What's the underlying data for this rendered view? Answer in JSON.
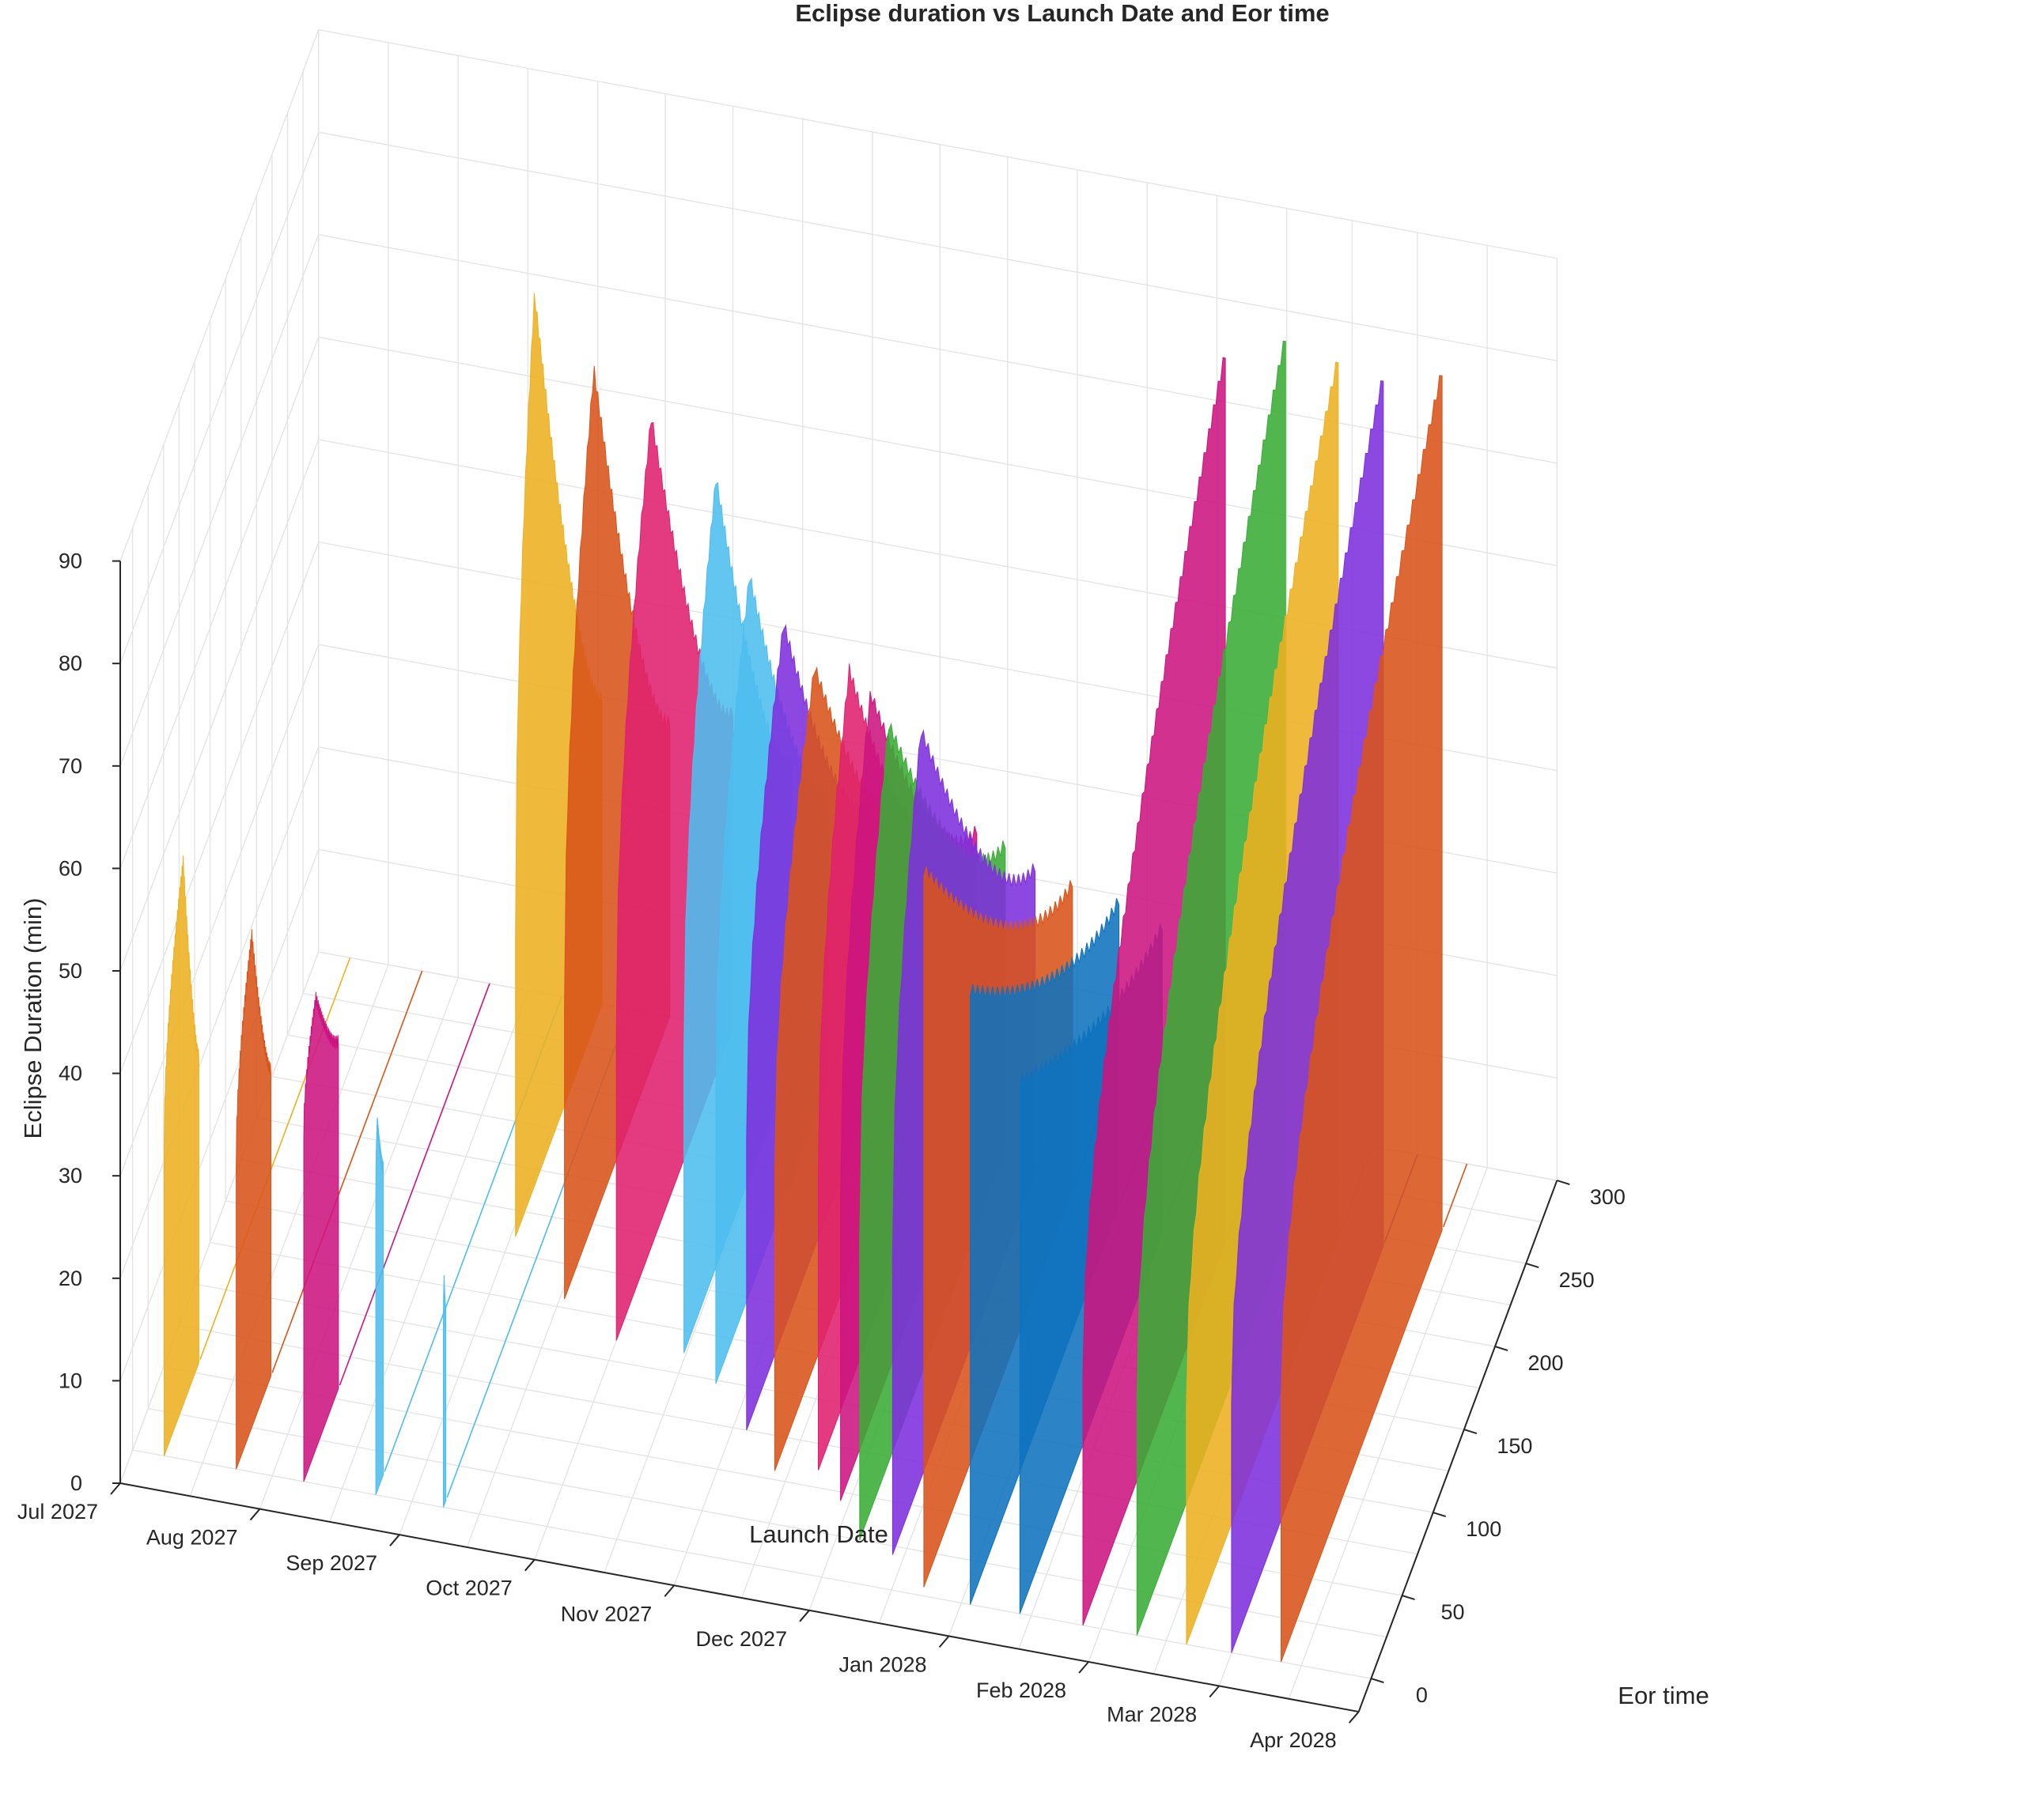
{
  "chart_data": {
    "type": "3d-ribbon",
    "title": "Eclipse duration vs Launch Date and Eor time",
    "xlabel": "Launch Date",
    "ylabel": "Eor time",
    "zlabel": "Eclipse Duration (min)",
    "x_ticks": [
      "Jul 2027",
      "Aug 2027",
      "Sep 2027",
      "Oct 2027",
      "Nov 2027",
      "Dec 2027",
      "Jan 2028",
      "Feb 2028",
      "Mar 2028",
      "Apr 2028"
    ],
    "y_ticks": [
      0,
      50,
      100,
      150,
      200,
      250,
      300
    ],
    "z_ticks": [
      0,
      10,
      20,
      30,
      40,
      50,
      60,
      70,
      80,
      90
    ],
    "xlim": [
      "Jul 2027",
      "Apr 2028"
    ],
    "ylim": [
      -20,
      300
    ],
    "zlim": [
      0,
      90
    ],
    "grid": true,
    "series": [
      {
        "launch": "2027-07-08",
        "color": "#edb120",
        "eor": [
          0,
          56
        ],
        "peak": 53,
        "peak_at": 0.55,
        "base": 30
      },
      {
        "launch": "2027-07-24",
        "color": "#d95319",
        "eor": [
          0,
          56
        ],
        "peak": 48,
        "peak_at": 0.45,
        "base": 30
      },
      {
        "launch": "2027-08-08",
        "color": "#cc1480",
        "eor": [
          0,
          56
        ],
        "peak": 44,
        "peak_at": 0.35,
        "base": 34
      },
      {
        "launch": "2027-08-24",
        "color": "#4dbeee",
        "eor": [
          0,
          12
        ],
        "peak": 36,
        "peak_at": 0.2,
        "base": 30
      },
      {
        "launch": "2027-09-08",
        "color": "#4dbeee",
        "eor": [
          0,
          4
        ],
        "peak": 22,
        "peak_at": 0.3,
        "base": 18
      },
      {
        "launch": "2027-09-02",
        "color": "#edb120",
        "eor": [
          160,
          300
        ],
        "peak": 87,
        "peak_at": 0.22,
        "base": 30
      },
      {
        "launch": "2027-09-17",
        "color": "#d95319",
        "eor": [
          130,
          300
        ],
        "peak": 83,
        "peak_at": 0.28,
        "base": 29
      },
      {
        "launch": "2027-10-01",
        "color": "#e0206e",
        "eor": [
          112,
          300
        ],
        "peak": 81,
        "peak_at": 0.3,
        "base": 31
      },
      {
        "launch": "2027-10-16",
        "color": "#4dbeee",
        "eor": [
          112,
          285
        ],
        "peak": 77,
        "peak_at": 0.3,
        "base": 30
      },
      {
        "launch": "2027-10-25",
        "color": "#4dbeee",
        "eor": [
          98,
          280
        ],
        "peak": 70,
        "peak_at": 0.3,
        "base": 29
      },
      {
        "launch": "2027-11-04",
        "color": "#7e2fde",
        "eor": [
          75,
          275
        ],
        "peak": 69,
        "peak_at": 0.3,
        "base": 29
      },
      {
        "launch": "2027-11-13",
        "color": "#d95319",
        "eor": [
          55,
          270
        ],
        "peak": 68,
        "peak_at": 0.3,
        "base": 30
      },
      {
        "launch": "2027-11-22",
        "color": "#e0206e",
        "eor": [
          60,
          260
        ],
        "peak": 70,
        "peak_at": 0.25,
        "base": 30
      },
      {
        "launch": "2027-11-29",
        "color": "#cc1480",
        "eor": [
          45,
          265
        ],
        "peak": 71,
        "peak_at": 0.22,
        "base": 30
      },
      {
        "launch": "2027-12-06",
        "color": "#3aac36",
        "eor": [
          25,
          260
        ],
        "peak": 72,
        "peak_at": 0.2,
        "base": 30
      },
      {
        "launch": "2027-12-14",
        "color": "#7e2fde",
        "eor": [
          20,
          250
        ],
        "peak": 73,
        "peak_at": 0.2,
        "base": 30
      },
      {
        "launch": "2027-12-23",
        "color": "#d95319",
        "eor": [
          5,
          245
        ],
        "peak": 70,
        "peak_at": 0.0,
        "base": 30
      },
      {
        "launch": "2028-01-03",
        "color": "#0f72bd",
        "eor": [
          0,
          240
        ],
        "peak": 60,
        "peak_at": 0.0,
        "base": 30
      },
      {
        "launch": "2028-01-14",
        "color": "#0f72bd",
        "eor": [
          0,
          230
        ],
        "peak": 52,
        "peak_at": 0.0,
        "base": 30
      },
      {
        "launch": "2028-01-28",
        "color": "#cc1480",
        "eor": [
          0,
          230
        ],
        "peak": 87,
        "peak_at": 1.0,
        "base": 25
      },
      {
        "launch": "2028-02-09",
        "color": "#3aac36",
        "eor": [
          0,
          240
        ],
        "peak": 88,
        "peak_at": 1.0,
        "base": 24
      },
      {
        "launch": "2028-02-20",
        "color": "#edb120",
        "eor": [
          0,
          245
        ],
        "peak": 86,
        "peak_at": 1.0,
        "base": 24
      },
      {
        "launch": "2028-03-01",
        "color": "#7e2fde",
        "eor": [
          0,
          245
        ],
        "peak": 85,
        "peak_at": 1.0,
        "base": 25
      },
      {
        "launch": "2028-03-12",
        "color": "#d95319",
        "eor": [
          0,
          260
        ],
        "peak": 84,
        "peak_at": 1.0,
        "base": 26
      }
    ]
  }
}
